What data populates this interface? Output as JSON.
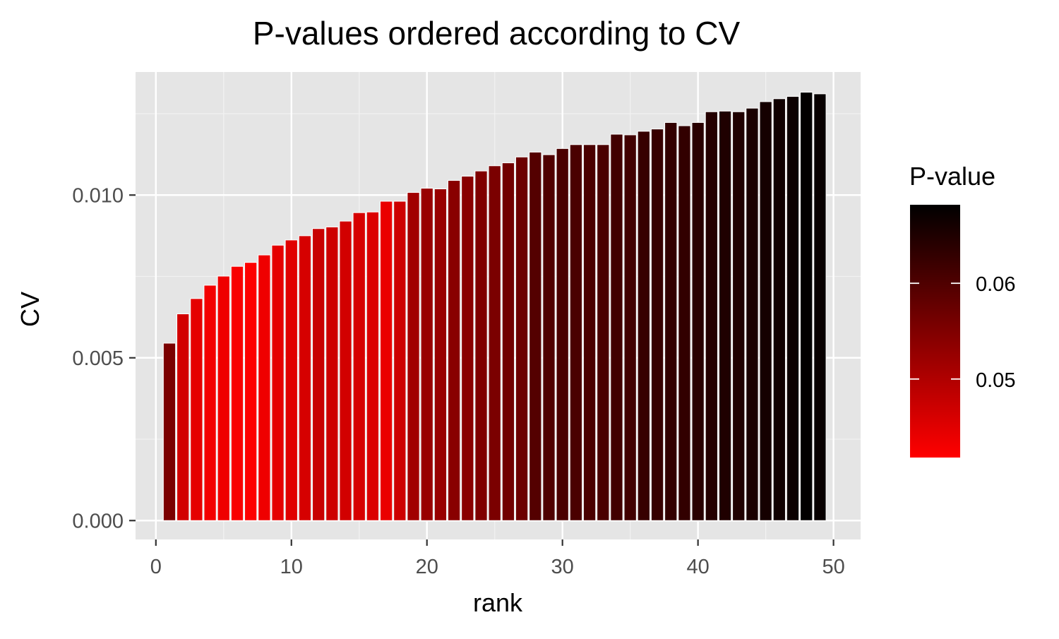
{
  "chart_data": {
    "type": "bar",
    "title": "P-values ordered according to CV",
    "xlabel": "rank",
    "ylabel": "CV",
    "x": [
      1,
      2,
      3,
      4,
      5,
      6,
      7,
      8,
      9,
      10,
      11,
      12,
      13,
      14,
      15,
      16,
      17,
      18,
      19,
      20,
      21,
      22,
      23,
      24,
      25,
      26,
      27,
      28,
      29,
      30,
      31,
      32,
      33,
      34,
      35,
      36,
      37,
      38,
      39,
      40,
      41,
      42,
      43,
      44,
      45,
      46,
      47,
      48,
      49
    ],
    "values": [
      0.00545,
      0.00635,
      0.00682,
      0.00723,
      0.00751,
      0.00781,
      0.00793,
      0.00816,
      0.00846,
      0.00862,
      0.00875,
      0.00897,
      0.00902,
      0.0092,
      0.00946,
      0.00948,
      0.00981,
      0.00981,
      0.01008,
      0.01021,
      0.01019,
      0.01045,
      0.01058,
      0.01074,
      0.0109,
      0.01099,
      0.01117,
      0.01132,
      0.01124,
      0.01143,
      0.01155,
      0.01155,
      0.01155,
      0.01187,
      0.01185,
      0.01196,
      0.01203,
      0.01223,
      0.01213,
      0.01223,
      0.01256,
      0.01258,
      0.01256,
      0.01267,
      0.01287,
      0.01296,
      0.01303,
      0.01316,
      0.01311
    ],
    "pvalues": [
      0.0555,
      0.0465,
      0.0445,
      0.043,
      0.0435,
      0.0425,
      0.042,
      0.0435,
      0.0445,
      0.045,
      0.046,
      0.0475,
      0.047,
      0.0465,
      0.046,
      0.0455,
      0.044,
      0.047,
      0.0515,
      0.0525,
      0.0525,
      0.054,
      0.054,
      0.055,
      0.0555,
      0.0565,
      0.057,
      0.0595,
      0.06,
      0.0605,
      0.0605,
      0.0605,
      0.0605,
      0.0615,
      0.0615,
      0.0625,
      0.0625,
      0.063,
      0.063,
      0.064,
      0.0645,
      0.065,
      0.065,
      0.0655,
      0.066,
      0.0665,
      0.067,
      0.068,
      0.0675
    ],
    "xlim": [
      -1.5,
      52
    ],
    "ylim": [
      -0.00058,
      0.01378
    ],
    "x_ticks": [
      0,
      10,
      20,
      30,
      40,
      50
    ],
    "x_tick_labels": [
      "0",
      "10",
      "20",
      "30",
      "40",
      "50"
    ],
    "y_ticks": [
      0,
      0.005,
      0.01
    ],
    "y_tick_labels": [
      "0.000",
      "0.005",
      "0.010"
    ],
    "grid": true,
    "legend": {
      "title": "P-value",
      "placement": "right",
      "color_low": "#FF0000",
      "color_high": "#000000",
      "range": [
        0.0418,
        0.0682
      ],
      "ticks": [
        0.05,
        0.06
      ],
      "tick_labels": [
        "0.05",
        "0.06"
      ]
    },
    "colors": {
      "panel_background": "#E5E5E5",
      "grid_major": "#FFFFFF",
      "grid_minor": "#F2F2F2",
      "tick_text": "#4D4D4D",
      "bar_outline": "#FFFFFF"
    }
  }
}
